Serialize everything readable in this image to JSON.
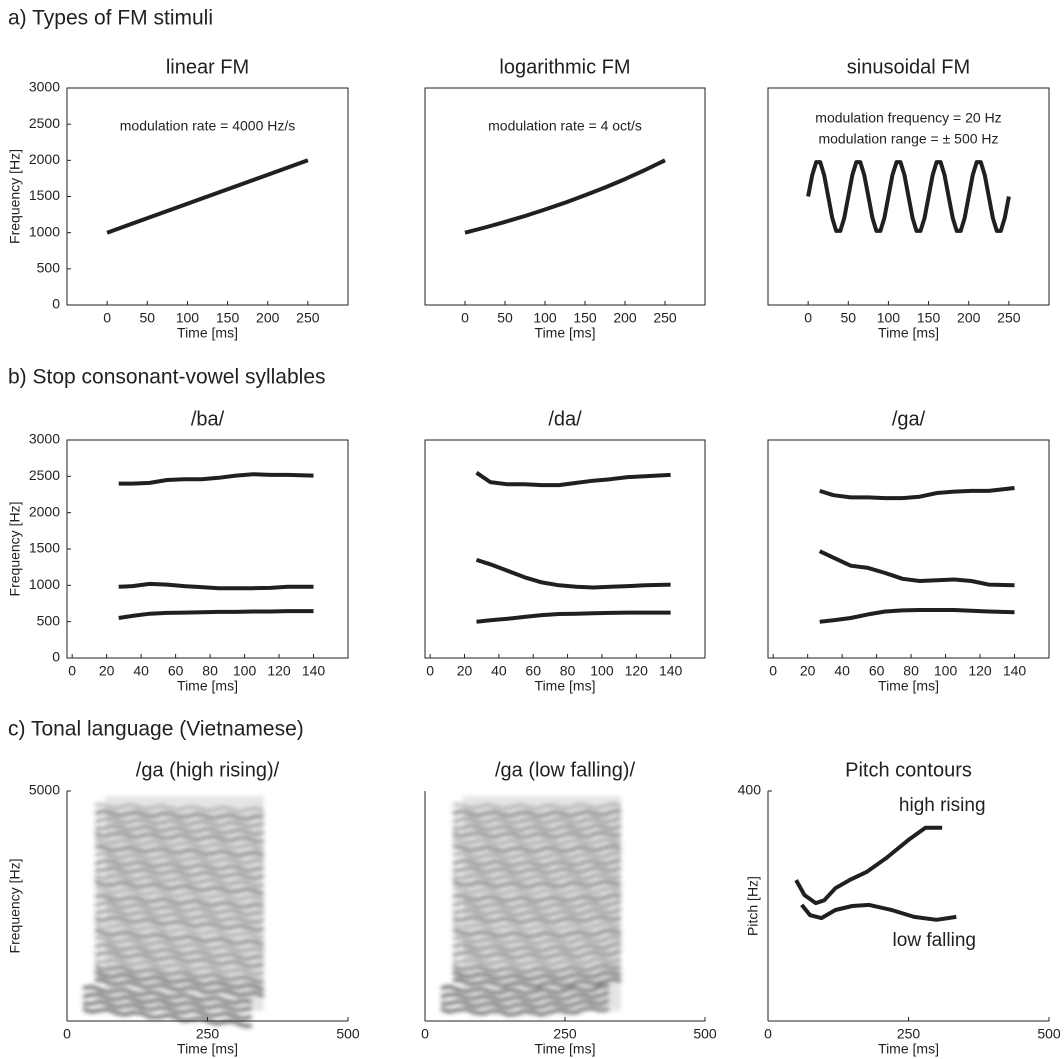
{
  "section_titles": [
    "a) Types of FM stimuli",
    "b) Stop consonant-vowel syllables",
    "c) Tonal language (Vietnamese)"
  ],
  "chart_data": [
    {
      "type": "line",
      "title": "linear FM",
      "x_label": "Time [ms]",
      "y_label": "Frequency [Hz]",
      "annotations": [
        "modulation rate = 4000 Hz/s"
      ],
      "xlim": [
        -50,
        300
      ],
      "xticks": [
        0,
        50,
        100,
        150,
        200,
        250
      ],
      "ylim": [
        0,
        3000
      ],
      "yticks": [
        0,
        500,
        1000,
        1500,
        2000,
        2500,
        3000
      ],
      "series": [
        {
          "color": "#231f20",
          "x": [
            0,
            250
          ],
          "values": [
            1000,
            2000
          ]
        }
      ]
    },
    {
      "type": "line",
      "title": "logarithmic FM",
      "x_label": "Time [ms]",
      "annotations": [
        "modulation rate = 4 oct/s"
      ],
      "xlim": [
        -50,
        300
      ],
      "xticks": [
        0,
        50,
        100,
        150,
        200,
        250
      ],
      "ylim": [
        0,
        3000
      ],
      "series": [
        {
          "color": "#231f20",
          "x": [
            0,
            25,
            50,
            75,
            100,
            125,
            150,
            175,
            200,
            225,
            250
          ],
          "values": [
            1000,
            1072,
            1149,
            1231,
            1320,
            1414,
            1516,
            1625,
            1741,
            1866,
            2000
          ]
        }
      ]
    },
    {
      "type": "line",
      "title": "sinusoidal FM",
      "x_label": "Time [ms]",
      "annotations": [
        "modulation frequency = 20 Hz",
        "modulation range = ± 500 Hz"
      ],
      "xlim": [
        -50,
        300
      ],
      "xticks": [
        0,
        50,
        100,
        150,
        200,
        250
      ],
      "ylim": [
        0,
        3000
      ],
      "series": [
        {
          "color": "#231f20",
          "x": [
            0,
            5,
            10,
            15,
            20,
            25,
            30,
            35,
            40,
            45,
            50,
            55,
            60,
            65,
            70,
            75,
            80,
            85,
            90,
            95,
            100,
            105,
            110,
            115,
            120,
            125,
            130,
            135,
            140,
            145,
            150,
            155,
            160,
            165,
            170,
            175,
            180,
            185,
            190,
            195,
            200,
            205,
            210,
            215,
            220,
            225,
            230,
            235,
            240,
            245,
            250
          ],
          "values": [
            1500,
            1794,
            1976,
            1976,
            1794,
            1500,
            1206,
            1024,
            1024,
            1206,
            1500,
            1794,
            1976,
            1976,
            1794,
            1500,
            1206,
            1024,
            1024,
            1206,
            1500,
            1794,
            1976,
            1976,
            1794,
            1500,
            1206,
            1024,
            1024,
            1206,
            1500,
            1794,
            1976,
            1976,
            1794,
            1500,
            1206,
            1024,
            1024,
            1206,
            1500,
            1794,
            1976,
            1976,
            1794,
            1500,
            1206,
            1024,
            1024,
            1206,
            1500
          ]
        }
      ]
    },
    {
      "type": "line",
      "title": "/ba/",
      "x_label": "Time [ms]",
      "y_label": "Frequency [Hz]",
      "xlim": [
        -3,
        160
      ],
      "xticks": [
        0,
        20,
        40,
        60,
        80,
        100,
        120,
        140
      ],
      "ylim": [
        0,
        3000
      ],
      "yticks": [
        0,
        500,
        1000,
        1500,
        2000,
        2500,
        3000
      ],
      "series": [
        {
          "color": "#231f20",
          "x": [
            27,
            35,
            45,
            55,
            65,
            75,
            85,
            95,
            105,
            115,
            125,
            140
          ],
          "values": [
            2400,
            2400,
            2410,
            2450,
            2460,
            2460,
            2480,
            2510,
            2530,
            2520,
            2520,
            2510
          ]
        },
        {
          "color": "#231f20",
          "x": [
            27,
            35,
            45,
            55,
            65,
            75,
            85,
            95,
            105,
            115,
            125,
            140
          ],
          "values": [
            980,
            990,
            1020,
            1010,
            990,
            975,
            960,
            960,
            960,
            965,
            980,
            980
          ]
        },
        {
          "color": "#231f20",
          "x": [
            27,
            35,
            45,
            55,
            65,
            75,
            85,
            95,
            105,
            115,
            125,
            140
          ],
          "values": [
            550,
            580,
            610,
            620,
            625,
            630,
            635,
            635,
            640,
            640,
            645,
            645
          ]
        }
      ]
    },
    {
      "type": "line",
      "title": "/da/",
      "x_label": "Time [ms]",
      "xlim": [
        -3,
        160
      ],
      "xticks": [
        0,
        20,
        40,
        60,
        80,
        100,
        120,
        140
      ],
      "ylim": [
        0,
        3000
      ],
      "series": [
        {
          "color": "#231f20",
          "x": [
            27,
            35,
            45,
            55,
            65,
            75,
            85,
            95,
            105,
            115,
            125,
            140
          ],
          "values": [
            2550,
            2420,
            2390,
            2390,
            2380,
            2380,
            2410,
            2440,
            2460,
            2490,
            2500,
            2520
          ]
        },
        {
          "color": "#231f20",
          "x": [
            27,
            35,
            45,
            55,
            65,
            75,
            85,
            95,
            105,
            115,
            125,
            140
          ],
          "values": [
            1350,
            1290,
            1200,
            1110,
            1040,
            1000,
            980,
            970,
            980,
            990,
            1000,
            1010
          ]
        },
        {
          "color": "#231f20",
          "x": [
            27,
            35,
            45,
            55,
            65,
            75,
            85,
            95,
            105,
            115,
            125,
            140
          ],
          "values": [
            500,
            520,
            540,
            565,
            590,
            605,
            610,
            615,
            620,
            625,
            625,
            625
          ]
        }
      ]
    },
    {
      "type": "line",
      "title": "/ga/",
      "x_label": "Time [ms]",
      "xlim": [
        -3,
        160
      ],
      "xticks": [
        0,
        20,
        40,
        60,
        80,
        100,
        120,
        140
      ],
      "ylim": [
        0,
        3000
      ],
      "series": [
        {
          "color": "#231f20",
          "x": [
            27,
            35,
            45,
            55,
            65,
            75,
            85,
            95,
            105,
            115,
            125,
            140
          ],
          "values": [
            2300,
            2240,
            2210,
            2210,
            2200,
            2200,
            2220,
            2270,
            2290,
            2300,
            2300,
            2340
          ]
        },
        {
          "color": "#231f20",
          "x": [
            27,
            35,
            45,
            55,
            65,
            75,
            85,
            95,
            105,
            115,
            125,
            140
          ],
          "values": [
            1470,
            1380,
            1270,
            1240,
            1170,
            1090,
            1060,
            1070,
            1080,
            1060,
            1010,
            1000
          ]
        },
        {
          "color": "#231f20",
          "x": [
            27,
            35,
            45,
            55,
            65,
            75,
            85,
            95,
            105,
            115,
            125,
            140
          ],
          "values": [
            500,
            520,
            550,
            600,
            640,
            655,
            660,
            660,
            660,
            650,
            640,
            630
          ]
        }
      ]
    },
    {
      "type": "spectrogram",
      "title": "/ga (high rising)/",
      "x_label": "Time [ms]",
      "y_label": "Frequency [Hz]",
      "xlim": [
        0,
        500
      ],
      "xticks": [
        0,
        250,
        500
      ],
      "ylim": [
        0,
        5000
      ],
      "yticks": [
        5000
      ]
    },
    {
      "type": "spectrogram",
      "title": "/ga (low falling)/",
      "x_label": "Time [ms]",
      "xlim": [
        0,
        500
      ],
      "xticks": [
        0,
        250,
        500
      ],
      "ylim": [
        0,
        5000
      ]
    },
    {
      "type": "line",
      "title": "Pitch contours",
      "x_label": "Time [ms]",
      "y_label": "Pitch [Hz]",
      "xlim": [
        0,
        500
      ],
      "xticks": [
        0,
        250,
        500
      ],
      "ylim": [
        0,
        400
      ],
      "yticks": [
        400
      ],
      "series": [
        {
          "name": "high rising",
          "color": "#231f20",
          "x": [
            50,
            65,
            85,
            100,
            120,
            145,
            175,
            210,
            250,
            280,
            310
          ],
          "values": [
            245,
            219,
            205,
            210,
            231,
            245,
            259,
            283,
            315,
            336,
            336
          ]
        },
        {
          "name": "low falling",
          "color": "#231f20",
          "x": [
            60,
            75,
            95,
            120,
            150,
            180,
            220,
            260,
            300,
            335
          ],
          "values": [
            202,
            184,
            179,
            193,
            200,
            202,
            193,
            181,
            176,
            181
          ]
        }
      ]
    }
  ]
}
